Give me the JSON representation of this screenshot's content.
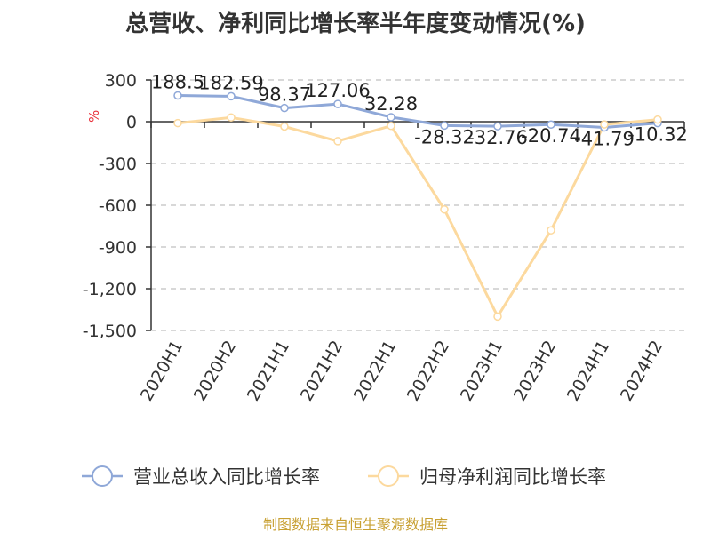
{
  "chart_data": {
    "type": "line",
    "title": "总营收、净利同比增长率半年度变动情况(%)",
    "ylabel": "%",
    "categories": [
      "2020H1",
      "2020H2",
      "2021H1",
      "2021H2",
      "2022H1",
      "2022H2",
      "2023H1",
      "2023H2",
      "2024H1",
      "2024H2"
    ],
    "ylim": [
      -1500,
      300
    ],
    "yticks": [
      300,
      0,
      -300,
      -600,
      -900,
      -1200,
      -1500
    ],
    "ytick_labels": [
      "300",
      "0",
      "-300",
      "-600",
      "-900",
      "-1,200",
      "-1,500"
    ],
    "grid": true,
    "legend_position": "bottom",
    "series": [
      {
        "name": "营业总收入同比增长率",
        "color": "#8fa8d8",
        "values": [
          188.5,
          182.59,
          98.37,
          127.06,
          32.28,
          -28.32,
          -32.76,
          -20.74,
          -41.79,
          -10.32
        ],
        "labels": [
          "188.5",
          "182.59",
          "98.37",
          "127.06",
          "32.28",
          "-28.32",
          "-32.76",
          "-20.74",
          "-41.79",
          "-10.32"
        ]
      },
      {
        "name": "归母净利润同比增长率",
        "color": "#fcd99e",
        "values": [
          -10,
          30,
          -35,
          -140,
          -30,
          -630,
          -1400,
          -780,
          -20,
          15
        ]
      }
    ],
    "source": "制图数据来自恒生聚源数据库"
  }
}
